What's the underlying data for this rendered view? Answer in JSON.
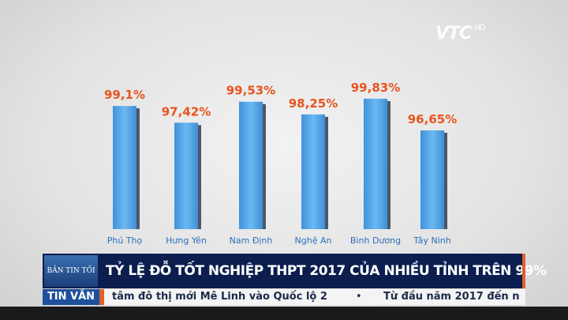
{
  "channel_logo": {
    "text": "VTC",
    "suffix": "HD"
  },
  "chart_data": {
    "type": "bar",
    "categories": [
      "Phú Thọ",
      "Hưng Yên",
      "Nam Định",
      "Nghệ An",
      "Bình Dương",
      "Tây Ninh"
    ],
    "values": [
      99.1,
      97.42,
      99.53,
      98.25,
      99.83,
      96.65
    ],
    "data_labels": [
      "99,1%",
      "97,42%",
      "99,53%",
      "98,25%",
      "99,83%",
      "96,65%"
    ],
    "bar_color": "#4ea3e8",
    "label_color": "#e8531e",
    "grid": false
  },
  "lower_third": {
    "brand": "BẢN TIN TỐI",
    "title": "TỶ LỆ ĐỖ TỐT NGHIỆP THPT 2017 CỦA NHIỀU TỈNH TRÊN 99%"
  },
  "ticker": {
    "tag": "TIN VẮN",
    "text": "tâm đô thị mới Mê Linh vào Quốc lộ 2",
    "bullet": "•",
    "text2": "Từ đầu năm 2017 đến n"
  }
}
